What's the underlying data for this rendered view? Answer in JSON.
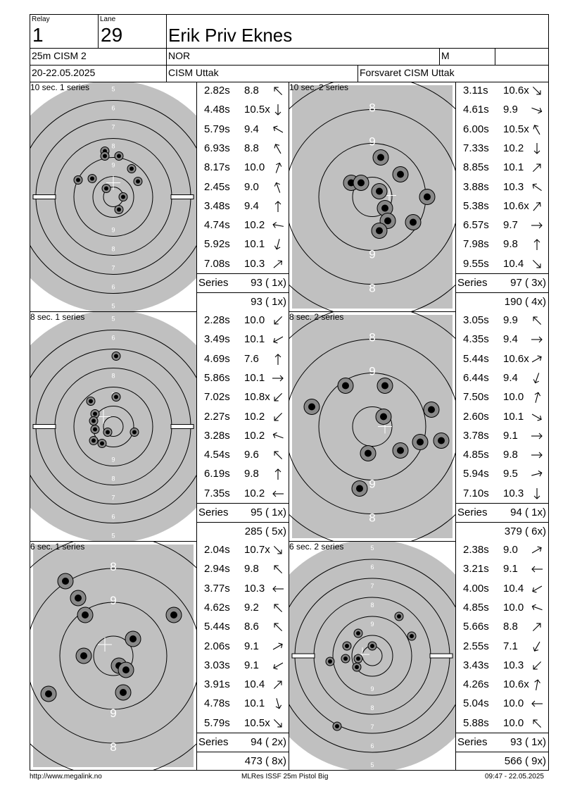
{
  "header": {
    "relay_label": "Relay",
    "relay_value": "1",
    "lane_label": "Lane",
    "lane_value": "29",
    "shooter_name": "Erik Priv Eknes",
    "class": "25m CISM 2",
    "nation": "NOR",
    "gender": "M",
    "dates": "20-22.05.2025",
    "competition": "CISM Uttak",
    "organizer": "Forsvaret CISM Uttak"
  },
  "panels": [
    {
      "title": "10 sec. 1 series",
      "target_type": "rings",
      "shots": [
        {
          "time": "2.82s",
          "score": "8.8",
          "dir": 315
        },
        {
          "time": "4.48s",
          "score": "10.5x",
          "dir": 180
        },
        {
          "time": "5.79s",
          "score": "9.4",
          "dir": 300
        },
        {
          "time": "6.93s",
          "score": "8.8",
          "dir": 330
        },
        {
          "time": "8.17s",
          "score": "10.0",
          "dir": 20
        },
        {
          "time": "2.45s",
          "score": "9.0",
          "dir": 340
        },
        {
          "time": "3.48s",
          "score": "9.4",
          "dir": 0
        },
        {
          "time": "4.74s",
          "score": "10.2",
          "dir": 280
        },
        {
          "time": "5.92s",
          "score": "10.1",
          "dir": 195
        },
        {
          "time": "7.08s",
          "score": "10.3",
          "dir": 50
        }
      ],
      "series_label": "Series",
      "series_total": "93 ( 1x)",
      "running_total": "93 ( 1x)",
      "holes": [
        [
          -12,
          -65
        ],
        [
          -12,
          -58
        ],
        [
          8,
          -58
        ],
        [
          26,
          -40
        ],
        [
          35,
          -22
        ],
        [
          -50,
          -24
        ],
        [
          -30,
          -26
        ],
        [
          -10,
          -12
        ],
        [
          14,
          0
        ],
        [
          8,
          18
        ]
      ],
      "cross": [
        0,
        -20
      ]
    },
    {
      "title": "10 sec. 2 series",
      "target_type": "center",
      "shots": [
        {
          "time": "3.11s",
          "score": "10.6x",
          "dir": 135
        },
        {
          "time": "4.61s",
          "score": "9.9",
          "dir": 110
        },
        {
          "time": "6.00s",
          "score": "10.5x",
          "dir": 330
        },
        {
          "time": "7.33s",
          "score": "10.2",
          "dir": 180
        },
        {
          "time": "8.85s",
          "score": "10.1",
          "dir": 45
        },
        {
          "time": "3.88s",
          "score": "10.3",
          "dir": 305
        },
        {
          "time": "5.38s",
          "score": "10.6x",
          "dir": 40
        },
        {
          "time": "6.57s",
          "score": "9.7",
          "dir": 90
        },
        {
          "time": "7.98s",
          "score": "9.8",
          "dir": 0
        },
        {
          "time": "9.55s",
          "score": "10.4",
          "dir": 135
        }
      ],
      "series_label": "Series",
      "series_total": "97 ( 3x)",
      "running_total": "190 ( 4x)",
      "holes": [
        [
          12,
          -56
        ],
        [
          40,
          -32
        ],
        [
          -30,
          -20
        ],
        [
          -16,
          -20
        ],
        [
          10,
          -8
        ],
        [
          18,
          16
        ],
        [
          22,
          34
        ],
        [
          58,
          36
        ],
        [
          10,
          48
        ],
        [
          78,
          0
        ]
      ],
      "cross": [
        24,
        -2
      ]
    },
    {
      "title": "8 sec. 1 series",
      "target_type": "rings",
      "shots": [
        {
          "time": "2.28s",
          "score": "10.0",
          "dir": 225
        },
        {
          "time": "3.49s",
          "score": "10.1",
          "dir": 240
        },
        {
          "time": "4.69s",
          "score": "7.6",
          "dir": 0
        },
        {
          "time": "5.86s",
          "score": "10.1",
          "dir": 90
        },
        {
          "time": "7.02s",
          "score": "10.8x",
          "dir": 225
        },
        {
          "time": "2.27s",
          "score": "10.2",
          "dir": 225
        },
        {
          "time": "3.28s",
          "score": "10.2",
          "dir": 290
        },
        {
          "time": "4.54s",
          "score": "9.6",
          "dir": 315
        },
        {
          "time": "6.19s",
          "score": "9.8",
          "dir": 0
        },
        {
          "time": "7.35s",
          "score": "10.2",
          "dir": 270
        }
      ],
      "series_label": "Series",
      "series_total": "95 ( 1x)",
      "running_total": "285 ( 5x)",
      "holes": [
        [
          4,
          -100
        ],
        [
          4,
          -42
        ],
        [
          -32,
          -36
        ],
        [
          -26,
          -18
        ],
        [
          -28,
          -8
        ],
        [
          -26,
          4
        ],
        [
          -8,
          8
        ],
        [
          30,
          8
        ],
        [
          -28,
          20
        ],
        [
          -16,
          24
        ]
      ],
      "cross": [
        -14,
        -14
      ]
    },
    {
      "title": "8 sec. 2 series",
      "target_type": "center",
      "shots": [
        {
          "time": "3.05s",
          "score": "9.9",
          "dir": 315
        },
        {
          "time": "4.35s",
          "score": "9.4",
          "dir": 90
        },
        {
          "time": "5.44s",
          "score": "10.6x",
          "dir": 60
        },
        {
          "time": "6.44s",
          "score": "9.4",
          "dir": 200
        },
        {
          "time": "7.50s",
          "score": "10.0",
          "dir": 15
        },
        {
          "time": "2.60s",
          "score": "10.1",
          "dir": 120
        },
        {
          "time": "3.78s",
          "score": "9.1",
          "dir": 90
        },
        {
          "time": "4.85s",
          "score": "9.8",
          "dir": 90
        },
        {
          "time": "5.94s",
          "score": "9.5",
          "dir": 75
        },
        {
          "time": "7.10s",
          "score": "10.3",
          "dir": 180
        }
      ],
      "series_label": "Series",
      "series_total": "94 ( 1x)",
      "running_total": "379 ( 6x)",
      "holes": [
        [
          -38,
          -58
        ],
        [
          18,
          -58
        ],
        [
          -86,
          -28
        ],
        [
          84,
          -24
        ],
        [
          16,
          -14
        ],
        [
          40,
          34
        ],
        [
          68,
          22
        ],
        [
          98,
          20
        ],
        [
          -6,
          38
        ],
        [
          -18,
          88
        ]
      ],
      "cross": [
        18,
        0
      ]
    },
    {
      "title": "6 sec. 1 series",
      "target_type": "center",
      "shots": [
        {
          "time": "2.04s",
          "score": "10.7x",
          "dir": 135
        },
        {
          "time": "2.94s",
          "score": "9.8",
          "dir": 315
        },
        {
          "time": "3.77s",
          "score": "10.3",
          "dir": 270
        },
        {
          "time": "4.62s",
          "score": "9.2",
          "dir": 315
        },
        {
          "time": "5.44s",
          "score": "8.6",
          "dir": 315
        },
        {
          "time": "2.06s",
          "score": "9.1",
          "dir": 60
        },
        {
          "time": "3.03s",
          "score": "9.1",
          "dir": 240
        },
        {
          "time": "3.91s",
          "score": "10.4",
          "dir": 45
        },
        {
          "time": "4.78s",
          "score": "10.1",
          "dir": 165
        },
        {
          "time": "5.79s",
          "score": "10.5x",
          "dir": 135
        }
      ],
      "series_label": "Series",
      "series_total": "94 ( 2x)",
      "running_total": "473 ( 8x)",
      "holes": [
        [
          -68,
          -106
        ],
        [
          -50,
          -82
        ],
        [
          -40,
          -58
        ],
        [
          86,
          -58
        ],
        [
          28,
          -24
        ],
        [
          -42,
          0
        ],
        [
          8,
          14
        ],
        [
          18,
          20
        ],
        [
          14,
          52
        ],
        [
          -92,
          54
        ]
      ],
      "cross": [
        -12,
        -16
      ]
    },
    {
      "title": "6 sec. 2 series",
      "target_type": "rings",
      "shots": [
        {
          "time": "2.38s",
          "score": "9.0",
          "dir": 60
        },
        {
          "time": "3.21s",
          "score": "9.1",
          "dir": 270
        },
        {
          "time": "4.00s",
          "score": "10.4",
          "dir": 240
        },
        {
          "time": "4.85s",
          "score": "10.0",
          "dir": 290
        },
        {
          "time": "5.66s",
          "score": "8.8",
          "dir": 45
        },
        {
          "time": "2.55s",
          "score": "7.1",
          "dir": 210
        },
        {
          "time": "3.43s",
          "score": "10.3",
          "dir": 225
        },
        {
          "time": "4.26s",
          "score": "10.6x",
          "dir": 10
        },
        {
          "time": "5.04s",
          "score": "10.0",
          "dir": 270
        },
        {
          "time": "5.88s",
          "score": "10.0",
          "dir": 315
        }
      ],
      "series_label": "Series",
      "series_total": "93 ( 1x)",
      "running_total": "566 ( 9x)",
      "holes": [
        [
          38,
          -56
        ],
        [
          56,
          -28
        ],
        [
          -20,
          -32
        ],
        [
          -36,
          -14
        ],
        [
          0,
          -14
        ],
        [
          -38,
          4
        ],
        [
          -20,
          4
        ],
        [
          -60,
          8
        ],
        [
          -22,
          16
        ],
        [
          -50,
          100
        ]
      ],
      "cross": [
        -14,
        -2
      ]
    }
  ],
  "footer": {
    "left": "http://www.megalink.no",
    "center": "MLRes ISSF 25m Pistol Big",
    "right": "09:47 - 22.05.2025"
  },
  "labels": {
    "rings_labels": [
      "5",
      "6",
      "7",
      "8",
      "9",
      "9",
      "8",
      "7",
      "6",
      "5"
    ],
    "center_labels": [
      "8",
      "9",
      "9",
      "8"
    ]
  }
}
